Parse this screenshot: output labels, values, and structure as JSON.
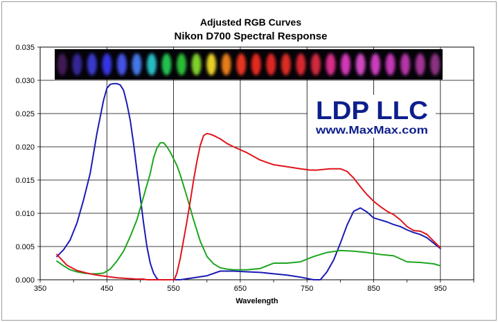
{
  "chart_data": {
    "type": "line",
    "title": "Adjusted RGB Curves",
    "subtitle": "Nikon D700 Spectral Response",
    "xlabel": "Wavelength",
    "ylabel": "",
    "xlim": [
      350,
      1000
    ],
    "ylim": [
      0,
      0.035
    ],
    "x_ticks": [
      "350",
      "450",
      "550",
      "650",
      "750",
      "850",
      "950"
    ],
    "y_ticks": [
      "0.000",
      "0.005",
      "0.010",
      "0.015",
      "0.020",
      "0.025",
      "0.030",
      "0.035"
    ],
    "grid": true,
    "legend": "none",
    "series": [
      {
        "color": "#1a1ab4",
        "x": [
          375,
          385,
          395,
          405,
          415,
          425,
          435,
          445,
          450,
          455,
          460,
          465,
          470,
          475,
          480,
          485,
          490,
          495,
          500,
          505,
          510,
          515,
          520,
          525,
          527,
          530,
          560,
          600,
          620,
          640,
          660,
          680,
          700,
          720,
          740,
          760,
          770,
          780,
          790,
          800,
          810,
          820,
          830,
          840,
          850,
          860,
          870,
          880,
          890,
          900,
          910,
          920,
          930,
          940,
          950
        ],
        "y": [
          0.0035,
          0.0045,
          0.006,
          0.0085,
          0.012,
          0.016,
          0.022,
          0.027,
          0.0288,
          0.0294,
          0.0295,
          0.0295,
          0.0293,
          0.0285,
          0.0265,
          0.024,
          0.0205,
          0.0165,
          0.0125,
          0.0085,
          0.005,
          0.0025,
          0.001,
          0.0002,
          0.0,
          0.0,
          0.0,
          0.0006,
          0.0013,
          0.0013,
          0.0012,
          0.0011,
          0.0009,
          0.0007,
          0.0004,
          0.0,
          0.0,
          0.0012,
          0.003,
          0.0055,
          0.0082,
          0.0103,
          0.0108,
          0.0102,
          0.0093,
          0.009,
          0.0087,
          0.0083,
          0.008,
          0.0075,
          0.0071,
          0.0068,
          0.0063,
          0.0055,
          0.0047
        ]
      },
      {
        "color": "#1da51d",
        "x": [
          375,
          385,
          395,
          405,
          415,
          425,
          435,
          445,
          455,
          465,
          475,
          485,
          495,
          505,
          515,
          520,
          525,
          530,
          535,
          540,
          545,
          550,
          555,
          560,
          570,
          580,
          590,
          600,
          610,
          620,
          630,
          640,
          660,
          680,
          700,
          720,
          740,
          760,
          780,
          800,
          820,
          840,
          860,
          880,
          900,
          920,
          940,
          950
        ],
        "y": [
          0.0028,
          0.0021,
          0.0015,
          0.0012,
          0.001,
          0.0009,
          0.0009,
          0.001,
          0.0016,
          0.0028,
          0.0043,
          0.0065,
          0.009,
          0.0125,
          0.016,
          0.0183,
          0.0198,
          0.0206,
          0.0206,
          0.02,
          0.0192,
          0.0182,
          0.0172,
          0.0158,
          0.0125,
          0.009,
          0.0058,
          0.0035,
          0.0024,
          0.0018,
          0.0016,
          0.0015,
          0.0015,
          0.0017,
          0.0025,
          0.0025,
          0.0027,
          0.0035,
          0.0041,
          0.0044,
          0.0043,
          0.0041,
          0.0038,
          0.0036,
          0.0027,
          0.0026,
          0.0024,
          0.0021
        ]
      },
      {
        "color": "#e0131a",
        "x": [
          375,
          390,
          405,
          420,
          435,
          450,
          465,
          480,
          495,
          505,
          510,
          515,
          520,
          540,
          551,
          555,
          560,
          565,
          570,
          575,
          580,
          585,
          590,
          595,
          600,
          605,
          610,
          620,
          630,
          640,
          660,
          680,
          700,
          720,
          740,
          755,
          765,
          775,
          785,
          800,
          810,
          820,
          830,
          840,
          850,
          860,
          870,
          880,
          890,
          900,
          910,
          920,
          930,
          940,
          950
        ],
        "y": [
          0.0038,
          0.0022,
          0.0014,
          0.001,
          0.0007,
          0.0005,
          0.0003,
          0.0002,
          0.0001,
          0.0001,
          0.0,
          0.0,
          0.0,
          0.0,
          0.0,
          0.001,
          0.0032,
          0.006,
          0.0088,
          0.0118,
          0.015,
          0.0178,
          0.0202,
          0.0217,
          0.022,
          0.0219,
          0.0217,
          0.0212,
          0.0205,
          0.02,
          0.0191,
          0.018,
          0.0173,
          0.017,
          0.0167,
          0.0165,
          0.0165,
          0.0166,
          0.0167,
          0.0167,
          0.0163,
          0.0153,
          0.014,
          0.0128,
          0.0118,
          0.011,
          0.0103,
          0.0098,
          0.009,
          0.008,
          0.0074,
          0.0073,
          0.0068,
          0.0058,
          0.0048
        ]
      }
    ],
    "annotations": [
      "LDP LLC",
      "www.MaxMax.com"
    ]
  },
  "colors": {
    "red": "#e0131a",
    "green": "#1da51d",
    "blue": "#1a1ab4",
    "watermark": "#0d1f8c"
  }
}
